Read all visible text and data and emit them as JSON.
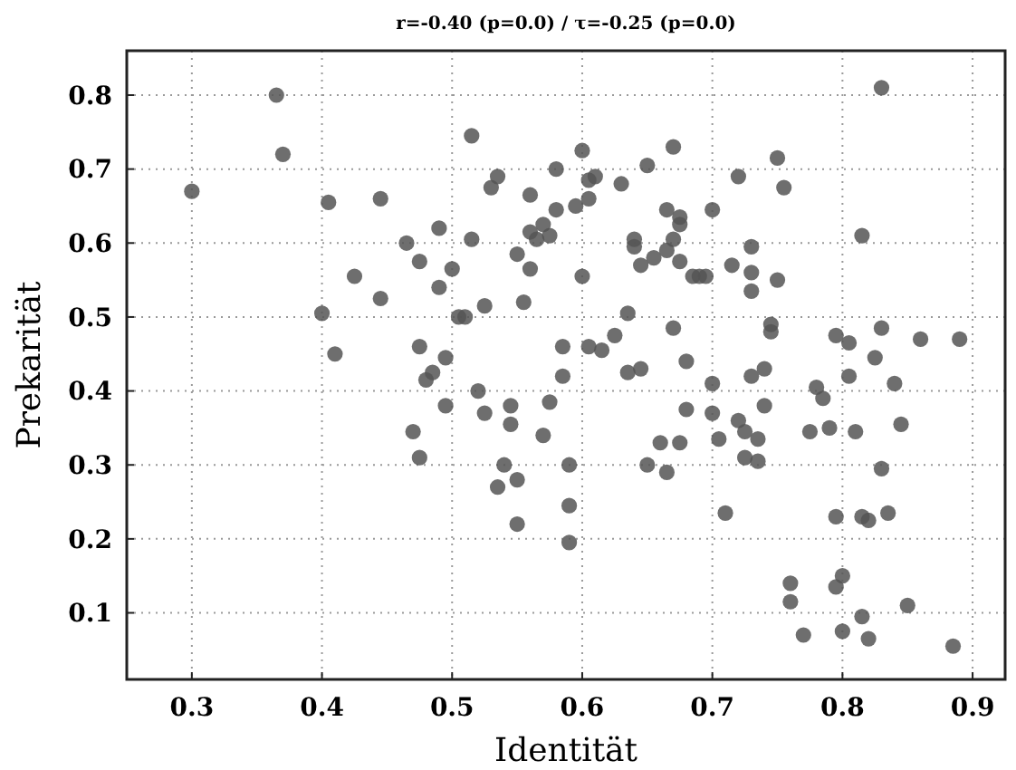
{
  "chart_data": {
    "type": "scatter",
    "title": "r=-0.40 (p=0.0) / τ=-0.25 (p=0.0)",
    "xlabel": "Identität",
    "ylabel": "Prekarität",
    "xlim": [
      0.25,
      0.925
    ],
    "ylim": [
      0.01,
      0.86
    ],
    "xticks": [
      0.3,
      0.4,
      0.5,
      0.6,
      0.7,
      0.8,
      0.9
    ],
    "yticks": [
      0.1,
      0.2,
      0.3,
      0.4,
      0.5,
      0.6,
      0.7,
      0.8
    ],
    "grid": true,
    "marker": "circle",
    "series": [
      {
        "color": "#555555",
        "x": [
          0.3,
          0.365,
          0.37,
          0.4,
          0.405,
          0.41,
          0.425,
          0.445,
          0.445,
          0.465,
          0.47,
          0.475,
          0.475,
          0.475,
          0.48,
          0.485,
          0.49,
          0.49,
          0.495,
          0.495,
          0.5,
          0.505,
          0.51,
          0.515,
          0.515,
          0.52,
          0.525,
          0.525,
          0.53,
          0.535,
          0.535,
          0.54,
          0.545,
          0.545,
          0.55,
          0.55,
          0.55,
          0.555,
          0.56,
          0.56,
          0.56,
          0.565,
          0.57,
          0.57,
          0.575,
          0.575,
          0.58,
          0.58,
          0.585,
          0.585,
          0.59,
          0.59,
          0.59,
          0.595,
          0.6,
          0.6,
          0.605,
          0.605,
          0.605,
          0.61,
          0.615,
          0.625,
          0.63,
          0.635,
          0.635,
          0.64,
          0.64,
          0.645,
          0.645,
          0.65,
          0.65,
          0.655,
          0.66,
          0.665,
          0.665,
          0.665,
          0.67,
          0.67,
          0.67,
          0.675,
          0.675,
          0.675,
          0.675,
          0.68,
          0.68,
          0.685,
          0.69,
          0.695,
          0.7,
          0.7,
          0.7,
          0.705,
          0.71,
          0.715,
          0.72,
          0.72,
          0.725,
          0.725,
          0.73,
          0.73,
          0.73,
          0.73,
          0.735,
          0.735,
          0.74,
          0.74,
          0.745,
          0.745,
          0.75,
          0.75,
          0.755,
          0.76,
          0.76,
          0.77,
          0.775,
          0.78,
          0.785,
          0.79,
          0.795,
          0.795,
          0.795,
          0.8,
          0.8,
          0.805,
          0.805,
          0.81,
          0.815,
          0.815,
          0.815,
          0.82,
          0.82,
          0.825,
          0.83,
          0.83,
          0.83,
          0.835,
          0.84,
          0.845,
          0.85,
          0.86,
          0.885,
          0.89
        ],
        "values": [
          0.67,
          0.8,
          0.72,
          0.505,
          0.655,
          0.45,
          0.555,
          0.525,
          0.66,
          0.6,
          0.345,
          0.46,
          0.31,
          0.575,
          0.415,
          0.425,
          0.62,
          0.54,
          0.445,
          0.38,
          0.565,
          0.5,
          0.5,
          0.745,
          0.605,
          0.4,
          0.37,
          0.515,
          0.675,
          0.69,
          0.27,
          0.3,
          0.38,
          0.355,
          0.22,
          0.28,
          0.585,
          0.52,
          0.665,
          0.565,
          0.615,
          0.605,
          0.34,
          0.625,
          0.385,
          0.61,
          0.7,
          0.645,
          0.46,
          0.42,
          0.3,
          0.245,
          0.195,
          0.65,
          0.725,
          0.555,
          0.685,
          0.66,
          0.46,
          0.69,
          0.455,
          0.475,
          0.68,
          0.425,
          0.505,
          0.605,
          0.595,
          0.57,
          0.43,
          0.705,
          0.3,
          0.58,
          0.33,
          0.645,
          0.59,
          0.29,
          0.73,
          0.485,
          0.605,
          0.625,
          0.635,
          0.575,
          0.33,
          0.375,
          0.44,
          0.555,
          0.555,
          0.555,
          0.645,
          0.41,
          0.37,
          0.335,
          0.235,
          0.57,
          0.69,
          0.36,
          0.345,
          0.31,
          0.595,
          0.56,
          0.535,
          0.42,
          0.335,
          0.305,
          0.38,
          0.43,
          0.49,
          0.48,
          0.715,
          0.55,
          0.675,
          0.14,
          0.115,
          0.07,
          0.345,
          0.405,
          0.39,
          0.35,
          0.475,
          0.23,
          0.135,
          0.15,
          0.075,
          0.42,
          0.465,
          0.345,
          0.61,
          0.23,
          0.095,
          0.065,
          0.225,
          0.445,
          0.81,
          0.485,
          0.295,
          0.235,
          0.41,
          0.355,
          0.11,
          0.47,
          0.055,
          0.47
        ]
      }
    ]
  }
}
